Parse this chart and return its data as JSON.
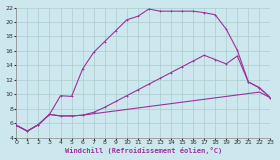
{
  "xlabel": "Windchill (Refroidissement éolien,°C)",
  "bg_color": "#cce8ee",
  "grid_color": "#aacccc",
  "line_color": "#993399",
  "xlim": [
    0,
    23
  ],
  "ylim": [
    4,
    22
  ],
  "xticks": [
    0,
    1,
    2,
    3,
    4,
    5,
    6,
    7,
    8,
    9,
    10,
    11,
    12,
    13,
    14,
    15,
    16,
    17,
    18,
    19,
    20,
    21,
    22,
    23
  ],
  "yticks": [
    4,
    6,
    8,
    10,
    12,
    14,
    16,
    18,
    20,
    22
  ],
  "s1_y": [
    5.7,
    4.9,
    5.8,
    7.2,
    7.0,
    7.0,
    7.1,
    7.3,
    7.5,
    7.7,
    7.9,
    8.1,
    8.3,
    8.5,
    8.7,
    8.9,
    9.1,
    9.3,
    9.5,
    9.7,
    9.9,
    10.1,
    10.3,
    9.5
  ],
  "s2_y": [
    5.7,
    4.9,
    5.8,
    7.2,
    7.0,
    7.0,
    7.1,
    7.5,
    8.2,
    9.0,
    9.8,
    10.6,
    11.4,
    12.2,
    13.0,
    13.8,
    14.6,
    15.4,
    14.8,
    14.2,
    15.3,
    11.7,
    10.9,
    9.5
  ],
  "s3_y": [
    5.7,
    4.9,
    5.8,
    7.2,
    9.8,
    9.7,
    13.5,
    15.8,
    17.3,
    18.8,
    20.3,
    20.8,
    21.8,
    21.5,
    21.5,
    21.5,
    21.5,
    21.3,
    21.0,
    19.0,
    16.1,
    11.7,
    10.9,
    9.5
  ]
}
